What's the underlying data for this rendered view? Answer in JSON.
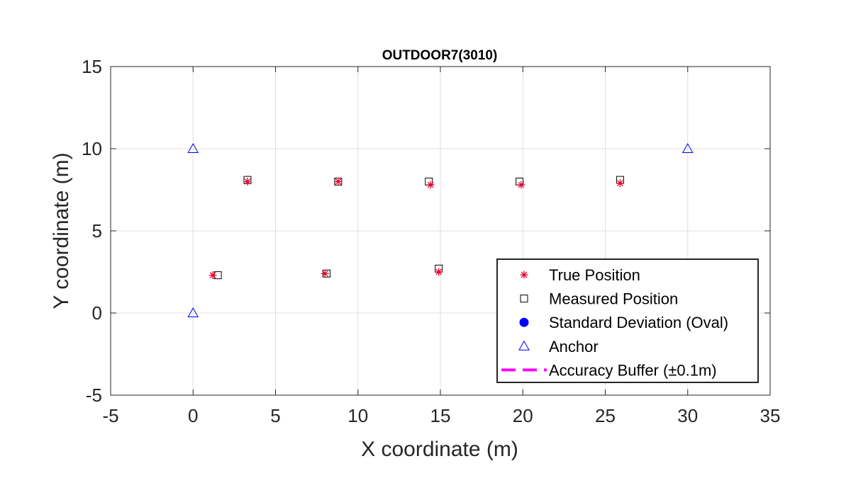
{
  "chart_data": {
    "type": "scatter",
    "title": "OUTDOOR7(3010)",
    "xlabel": "X coordinate (m)",
    "ylabel": "Y coordinate (m)",
    "xlim": [
      -5,
      35
    ],
    "ylim": [
      -5,
      15
    ],
    "xticks": [
      -5,
      0,
      5,
      10,
      15,
      20,
      25,
      30,
      35
    ],
    "yticks": [
      -5,
      0,
      5,
      10,
      15
    ],
    "grid": true,
    "legend_position": "bottom-right",
    "series": [
      {
        "name": "True Position",
        "marker": "asterisk",
        "color": "#e8002a",
        "points": [
          [
            1.2,
            2.3
          ],
          [
            8.0,
            2.4
          ],
          [
            14.9,
            2.5
          ],
          [
            3.3,
            8.0
          ],
          [
            8.8,
            8.0
          ],
          [
            14.4,
            7.8
          ],
          [
            19.9,
            7.8
          ],
          [
            25.9,
            7.9
          ]
        ]
      },
      {
        "name": "Measured Position",
        "marker": "square",
        "color": "#000000",
        "points": [
          [
            1.5,
            2.3
          ],
          [
            8.1,
            2.4
          ],
          [
            14.9,
            2.7
          ],
          [
            3.3,
            8.1
          ],
          [
            8.8,
            8.0
          ],
          [
            14.3,
            8.0
          ],
          [
            19.8,
            8.0
          ],
          [
            25.9,
            8.1
          ]
        ]
      },
      {
        "name": "Standard Deviation (Oval)",
        "marker": "filled-circle",
        "color": "#0000ff",
        "points": []
      },
      {
        "name": "Anchor",
        "marker": "triangle",
        "color": "#0000ff",
        "points": [
          [
            0,
            0
          ],
          [
            0,
            10
          ],
          [
            30,
            10
          ]
        ]
      },
      {
        "name": "Accuracy Buffer (±0.1m)",
        "marker": "dashed-line",
        "color": "#ff00ff",
        "points": []
      }
    ]
  }
}
